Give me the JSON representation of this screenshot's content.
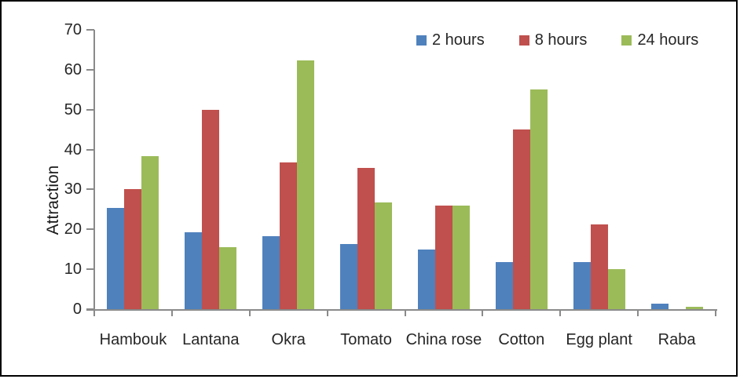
{
  "chart_data": {
    "type": "bar",
    "title": "",
    "xlabel": "",
    "ylabel": "Attraction",
    "ylim": [
      0,
      70
    ],
    "ytick_step": 10,
    "grid": false,
    "legend_position": "top-right-inside",
    "categories": [
      "Hambouk",
      "Lantana",
      "Okra",
      "Tomato",
      "China rose",
      "Cotton",
      "Egg plant",
      "Raba"
    ],
    "yticks": [
      0,
      10,
      20,
      30,
      40,
      50,
      60,
      70
    ],
    "series": [
      {
        "name": "2 hours",
        "color": "#4F81BD",
        "values": [
          25.3,
          19.3,
          18.3,
          16.3,
          15.0,
          11.7,
          11.7,
          1.3
        ]
      },
      {
        "name": "8 hours",
        "color": "#C0504D",
        "values": [
          30.0,
          50.0,
          36.7,
          35.3,
          26.0,
          45.0,
          21.3,
          0.0
        ]
      },
      {
        "name": "24 hours",
        "color": "#9BBB59",
        "values": [
          38.3,
          15.5,
          62.3,
          26.7,
          26.0,
          55.0,
          10.0,
          0.5
        ]
      }
    ],
    "frame_color": "#000000",
    "axis_color": "#8a8a8a",
    "text_color": "#262626"
  }
}
